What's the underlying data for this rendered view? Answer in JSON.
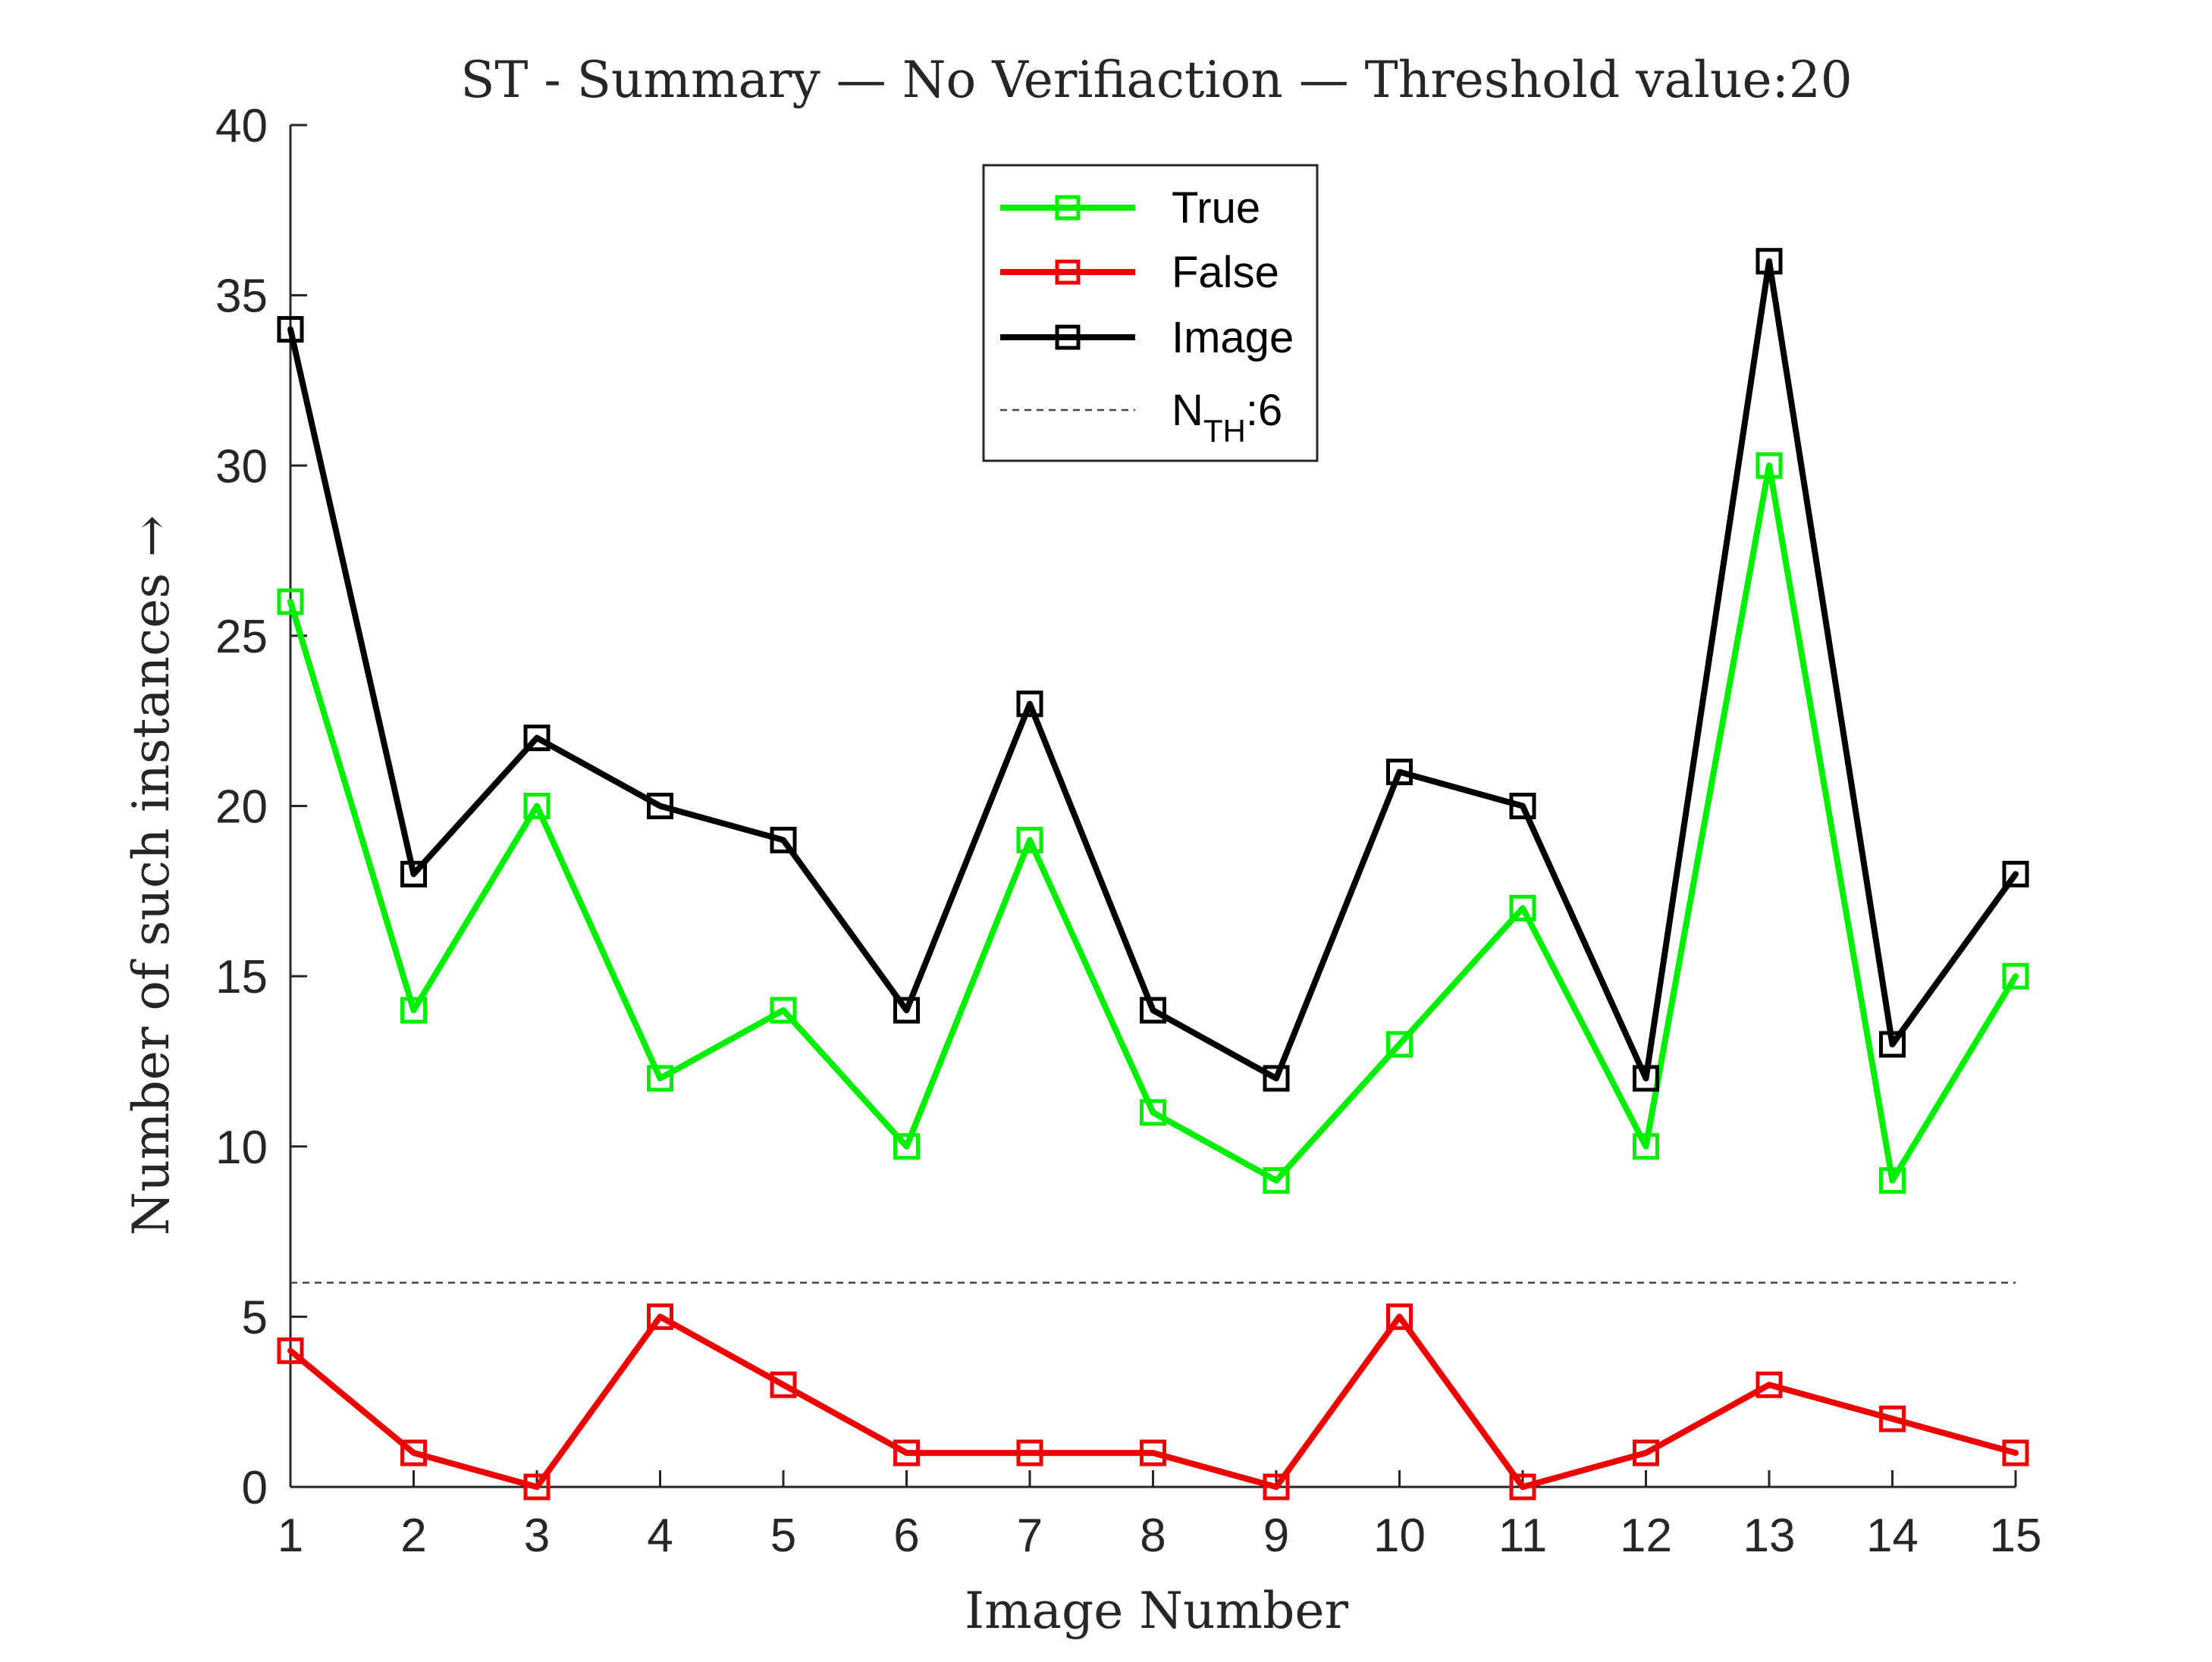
{
  "chart_data": {
    "type": "line",
    "title": "ST - Summary — No Verifiaction — Threshold value:20",
    "xlabel": "Image Number",
    "ylabel": "Number of such instances →",
    "xlim": [
      1,
      15
    ],
    "ylim": [
      0,
      40
    ],
    "x": [
      1,
      2,
      3,
      4,
      5,
      6,
      7,
      8,
      9,
      10,
      11,
      12,
      13,
      14,
      15
    ],
    "xticks": [
      "1",
      "2",
      "3",
      "4",
      "5",
      "6",
      "7",
      "8",
      "9",
      "10",
      "11",
      "12",
      "13",
      "14",
      "15"
    ],
    "yticks": [
      "0",
      "5",
      "10",
      "15",
      "20",
      "25",
      "30",
      "35",
      "40"
    ],
    "grid": false,
    "legend_position": "top-center",
    "series": [
      {
        "name": "True",
        "color": "#00ee00",
        "marker": "square",
        "values": [
          26,
          14,
          20,
          12,
          14,
          10,
          19,
          11,
          9,
          13,
          17,
          10,
          30,
          9,
          15
        ]
      },
      {
        "name": "False",
        "color": "#ee0000",
        "marker": "square",
        "values": [
          4,
          1,
          0,
          5,
          3,
          1,
          1,
          1,
          0,
          5,
          0,
          1,
          3,
          2,
          1
        ]
      },
      {
        "name": "Image",
        "color": "#000000",
        "marker": "square",
        "values": [
          34,
          18,
          22,
          20,
          19,
          14,
          23,
          14,
          12,
          21,
          20,
          12,
          36,
          13,
          18
        ]
      }
    ],
    "threshold": {
      "value": 6,
      "label_main": "N",
      "label_sub": "TH",
      "label_suffix": ":6",
      "color": "#444444",
      "style": "dashed"
    }
  }
}
